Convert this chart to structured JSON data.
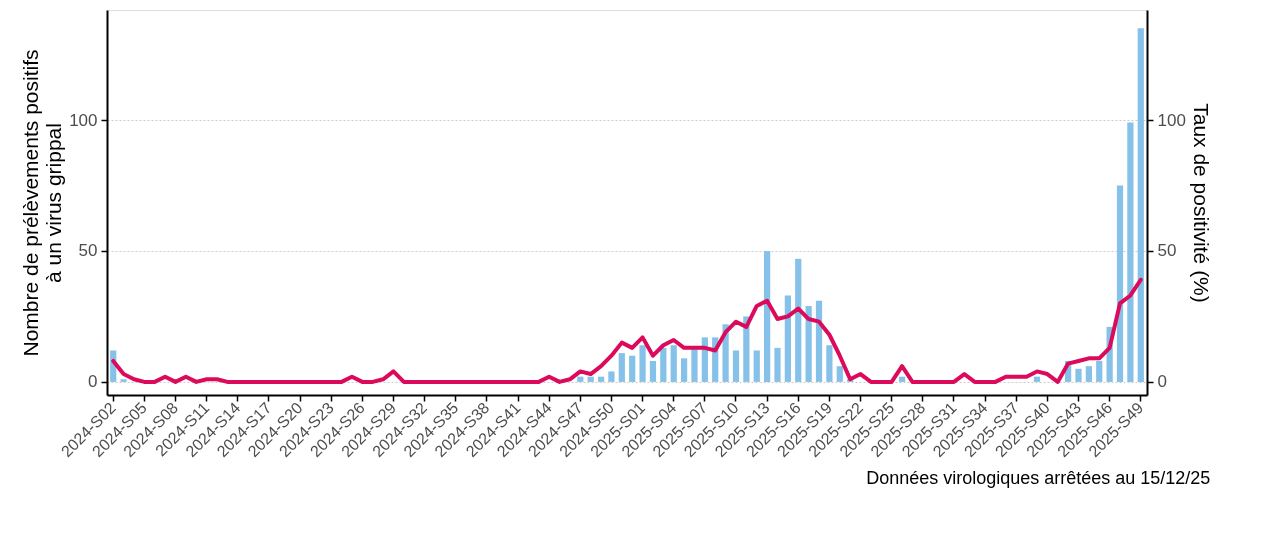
{
  "chart_data": {
    "type": "bar",
    "ylabel": "Nombre de prélèvements positifs\nà un virus grippal",
    "y2label": "Taux de positivité (%)",
    "annotations": [
      "Données virologiques arrêtées au 15/12/25"
    ],
    "categories": [
      "2024-S02",
      null,
      null,
      "2024-S05",
      null,
      null,
      "2024-S08",
      null,
      null,
      "2024-S11",
      null,
      null,
      "2024-S14",
      null,
      null,
      "2024-S17",
      null,
      null,
      "2024-S20",
      null,
      null,
      "2024-S23",
      null,
      null,
      "2024-S26",
      null,
      null,
      "2024-S29",
      null,
      null,
      "2024-S32",
      null,
      null,
      "2024-S35",
      null,
      null,
      "2024-S38",
      null,
      null,
      "2024-S41",
      null,
      null,
      "2024-S44",
      null,
      null,
      "2024-S47",
      null,
      null,
      "2024-S50",
      null,
      null,
      "2025-S01",
      null,
      null,
      "2025-S04",
      null,
      null,
      "2025-S07",
      null,
      null,
      "2025-S10",
      null,
      null,
      "2025-S13",
      null,
      null,
      "2025-S16",
      null,
      null,
      "2025-S19",
      null,
      null,
      "2025-S22",
      null,
      null,
      "2025-S25",
      null,
      null,
      "2025-S28",
      null,
      null,
      "2025-S31",
      null,
      null,
      "2025-S34",
      null,
      null,
      "2025-S37",
      null,
      null,
      "2025-S40",
      null,
      null,
      "2025-S43",
      null,
      null,
      "2025-S46",
      null,
      null,
      "2025-S49"
    ],
    "series": [
      {
        "color": "#85c1e9",
        "values": [
          12,
          1,
          0,
          0,
          0,
          0,
          0,
          0,
          0,
          0,
          0,
          0,
          0,
          0,
          0,
          0,
          0,
          0,
          0,
          0,
          0,
          0,
          0,
          0,
          0,
          0,
          0,
          0,
          0,
          0,
          0,
          0,
          0,
          0,
          0,
          0,
          0,
          0,
          0,
          0,
          0,
          0,
          0,
          0,
          0,
          2,
          2,
          2,
          4,
          11,
          10,
          14,
          8,
          13,
          14,
          9,
          13,
          17,
          17,
          22,
          12,
          25,
          12,
          50,
          13,
          33,
          47,
          29,
          31,
          14,
          6,
          1,
          0,
          0,
          0,
          0,
          2,
          0,
          0,
          0,
          0,
          0,
          0,
          0,
          0,
          0,
          0,
          0,
          0,
          2,
          0,
          null,
          8,
          5,
          6,
          8,
          21,
          75,
          99,
          135
        ]
      },
      {
        "type": "line",
        "axis": "y2",
        "color": "#dc0a5a",
        "values": [
          8,
          3,
          1,
          0,
          0,
          2,
          0,
          2,
          0,
          1,
          1,
          0,
          0,
          0,
          0,
          0,
          0,
          0,
          0,
          0,
          0,
          0,
          0,
          2,
          0,
          0,
          1,
          4,
          0,
          0,
          0,
          0,
          0,
          0,
          0,
          0,
          0,
          0,
          0,
          0,
          0,
          0,
          2,
          0,
          1,
          4,
          3,
          6,
          10,
          15,
          13,
          17,
          10,
          14,
          16,
          13,
          13,
          13,
          12,
          19,
          23,
          21,
          29,
          31,
          24,
          25,
          28,
          24,
          23,
          18,
          10,
          1,
          3,
          0,
          0,
          0,
          6,
          0,
          0,
          0,
          0,
          0,
          3,
          0,
          0,
          0,
          2,
          2,
          2,
          4,
          3,
          0,
          7,
          8,
          9,
          9,
          13,
          30,
          33,
          39
        ]
      }
    ],
    "ylim": [
      -5,
      142
    ],
    "yticks": [
      0,
      50,
      100
    ],
    "y2lim": [
      -5,
      142
    ],
    "y2ticks": [
      0,
      50,
      100
    ],
    "grid": "y",
    "marker": "none",
    "line_style": "solid"
  }
}
